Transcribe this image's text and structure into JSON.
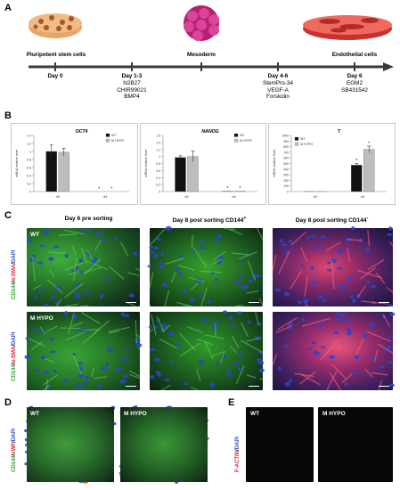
{
  "figure": {
    "panel_letters": {
      "A": "A",
      "B": "B",
      "C": "C",
      "D": "D",
      "E": "E"
    },
    "timeline": {
      "stages": [
        {
          "name": "Pluripotent stem cells",
          "day": "Day 0",
          "conditions": ""
        },
        {
          "name": "",
          "day": "Day 1-3",
          "conditions": "N2B27\nCHIR99021\nBMP4"
        },
        {
          "name": "Mesoderm",
          "day": "",
          "conditions": ""
        },
        {
          "name": "",
          "day": "Day 4-6",
          "conditions": "StemPro-34\nVEGF-A\nForskolin"
        },
        {
          "name": "Endothelial cells",
          "day": "Day 6",
          "conditions": "EGM2\nSB431542"
        }
      ]
    },
    "panel_c": {
      "col_titles": [
        "Day 6 pre sorting",
        "Day 8 post sorting CD144",
        "Day 8 post sorting CD144"
      ],
      "col_superscripts": [
        "",
        "+",
        "-"
      ],
      "row_labels": [
        "WT",
        "M HYPO"
      ],
      "stain_label": {
        "a": "CD144",
        "sep1": "/",
        "b": "α-SMA",
        "sep2": "/",
        "c": "DAPI"
      }
    },
    "panel_d": {
      "labels": [
        "WT",
        "M HYPO"
      ],
      "stain_label": {
        "a": "CD144",
        "sep1": "/",
        "b": "vWF",
        "sep2": "/",
        "c": "DAPI"
      }
    },
    "panel_e": {
      "labels": [
        "WT",
        "M HYPO"
      ],
      "stain_label": {
        "a": "F-ACTIN",
        "sep1": "/",
        "b": "DAPI"
      }
    },
    "colors": {
      "green": "#2f9a2f",
      "red": "#d0203a",
      "blue": "#2c4fb0",
      "dapi": "#1e2fd0",
      "arrow": "#3a3a3a"
    }
  },
  "chart_data": [
    {
      "type": "bar",
      "title": "OCT4",
      "ylabel": "mRNA relative level",
      "categories": [
        "d0",
        "d4"
      ],
      "ylim": [
        0,
        1.4
      ],
      "yticks": [
        "0",
        "0.2",
        "0.4",
        "0.6",
        "0.8",
        "1",
        "1.2",
        "1.4"
      ],
      "series": [
        {
          "name": "WT",
          "values": [
            1.0,
            0.0
          ]
        },
        {
          "name": "M HYPO",
          "values": [
            0.98,
            0.0
          ]
        }
      ],
      "errors": [
        [
          0.16,
          0.0
        ],
        [
          0.1,
          0.0
        ]
      ],
      "annotations": [
        "*",
        "*"
      ],
      "legend": "top-right"
    },
    {
      "type": "bar",
      "title": "NANOG",
      "ylabel": "mRNA relative level",
      "categories": [
        "d0",
        "d4"
      ],
      "ylim": [
        0,
        1.6
      ],
      "yticks": [
        "0",
        "0.2",
        "0.4",
        "0.6",
        "0.8",
        "1",
        "1.2",
        "1.4",
        "1.6"
      ],
      "series": [
        {
          "name": "WT",
          "values": [
            0.97,
            0.01
          ]
        },
        {
          "name": "M HYPO",
          "values": [
            1.0,
            0.01
          ]
        }
      ],
      "errors": [
        [
          0.05,
          0.0
        ],
        [
          0.15,
          0.0
        ]
      ],
      "annotations": [
        "*",
        "*"
      ],
      "legend": "top-right"
    },
    {
      "type": "bar",
      "title": "T",
      "ylabel": "mRNA relative level",
      "categories": [
        "d0",
        "d4"
      ],
      "ylim": [
        0,
        1000
      ],
      "yticks": [
        "0",
        "100",
        "200",
        "300",
        "400",
        "500",
        "600",
        "700",
        "800",
        "900",
        "1000"
      ],
      "series": [
        {
          "name": "WT",
          "values": [
            1,
            470
          ]
        },
        {
          "name": "M HYPO",
          "values": [
            1,
            750
          ]
        }
      ],
      "errors": [
        [
          0,
          30
        ],
        [
          0,
          60
        ]
      ],
      "annotations": [
        "*",
        "*"
      ],
      "legend": "top-left"
    }
  ]
}
